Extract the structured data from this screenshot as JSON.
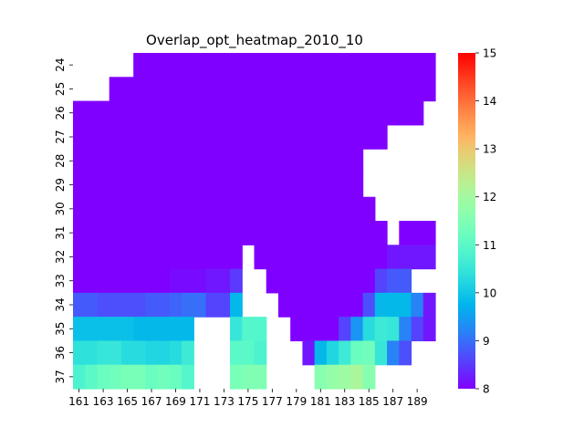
{
  "chart_data": {
    "type": "heatmap",
    "title": "Overlap_opt_heatmap_2010_10",
    "x_ticks": [
      "161",
      "163",
      "165",
      "167",
      "169",
      "171",
      "173",
      "175",
      "177",
      "179",
      "181",
      "183",
      "185",
      "187",
      "189"
    ],
    "y_ticks": [
      "24",
      "25",
      "26",
      "27",
      "28",
      "29",
      "30",
      "31",
      "32",
      "33",
      "34",
      "35",
      "36",
      "37"
    ],
    "x_start": 161,
    "x_end": 190,
    "y_start": 24,
    "y_end": 37,
    "colorbar": {
      "min": 8,
      "max": 15,
      "ticks": [
        "8",
        "9",
        "10",
        "11",
        "12",
        "13",
        "14",
        "15"
      ],
      "colormap": "rainbow"
    },
    "rows": [
      [
        null,
        null,
        null,
        null,
        null,
        8,
        8,
        8,
        8,
        8,
        8,
        8,
        8,
        8,
        8,
        8,
        8,
        8,
        8,
        8,
        8,
        8,
        8,
        8,
        8,
        8,
        8,
        8,
        8,
        8
      ],
      [
        null,
        null,
        null,
        8,
        8,
        8,
        8,
        8,
        8,
        8,
        8,
        8,
        8,
        8,
        8,
        8,
        8,
        8,
        8,
        8,
        8,
        8,
        8,
        8,
        8,
        8,
        8,
        8,
        8,
        8
      ],
      [
        8,
        8,
        8,
        8,
        8,
        8,
        8,
        8,
        8,
        8,
        8,
        8,
        8,
        8,
        8,
        8,
        8,
        8,
        8,
        8,
        8,
        8,
        8,
        8,
        8,
        8,
        8,
        8,
        8,
        null
      ],
      [
        8,
        8,
        8,
        8,
        8,
        8,
        8,
        8,
        8,
        8,
        8,
        8,
        8,
        8,
        8,
        8,
        8,
        8,
        8,
        8,
        8,
        8,
        8,
        8,
        8,
        8,
        null,
        null,
        null,
        null
      ],
      [
        8,
        8,
        8,
        8,
        8,
        8,
        8,
        8,
        8,
        8,
        8,
        8,
        8,
        8,
        8,
        8,
        8,
        8,
        8,
        8,
        8,
        8,
        8,
        8,
        null,
        null,
        null,
        null,
        null,
        null
      ],
      [
        8,
        8,
        8,
        8,
        8,
        8,
        8,
        8,
        8,
        8,
        8,
        8,
        8,
        8,
        8,
        8,
        8,
        8,
        8,
        8,
        8,
        8,
        8,
        8,
        null,
        null,
        null,
        null,
        null,
        null
      ],
      [
        8,
        8,
        8,
        8,
        8,
        8,
        8,
        8,
        8,
        8,
        8,
        8,
        8,
        8,
        8,
        8,
        8,
        8,
        8,
        8,
        8,
        8,
        8,
        8,
        8,
        null,
        null,
        null,
        null,
        null
      ],
      [
        8,
        8,
        8,
        8,
        8,
        8,
        8,
        8,
        8,
        8,
        8,
        8,
        8,
        8,
        8,
        8,
        8,
        8,
        8,
        8,
        8,
        8,
        8,
        8,
        8,
        8,
        null,
        8,
        8,
        8
      ],
      [
        8,
        8,
        8,
        8,
        8,
        8,
        8,
        8,
        8,
        8,
        8,
        8,
        8,
        8,
        null,
        8,
        8,
        8,
        8,
        8,
        8,
        8,
        8,
        8,
        8,
        8,
        8.2,
        8.2,
        8.2,
        8.2
      ],
      [
        8,
        8,
        8,
        8,
        8,
        8,
        8,
        8,
        8.1,
        8.1,
        8.1,
        8.2,
        8.2,
        8.5,
        null,
        null,
        8,
        8,
        8,
        8,
        8,
        8,
        8,
        8,
        8,
        8.6,
        8.8,
        8.8,
        null,
        null
      ],
      [
        8.8,
        8.8,
        8.7,
        8.7,
        8.7,
        8.7,
        8.8,
        8.8,
        8.9,
        9.0,
        9.0,
        8.6,
        8.6,
        9.8,
        null,
        null,
        null,
        8,
        8,
        8,
        8,
        8,
        8,
        8,
        8.7,
        9.8,
        9.8,
        9.8,
        9.2,
        8.2
      ],
      [
        9.9,
        9.9,
        9.9,
        9.9,
        9.9,
        9.8,
        9.8,
        9.8,
        9.8,
        9.8,
        null,
        null,
        null,
        10.5,
        10.9,
        10.9,
        null,
        null,
        8,
        8,
        8,
        8,
        8.6,
        9.4,
        10.3,
        10.6,
        10.5,
        9.2,
        8.6,
        8.2
      ],
      [
        10.4,
        10.4,
        10.5,
        10.5,
        10.3,
        10.3,
        10.2,
        10.2,
        10.3,
        10.6,
        null,
        null,
        null,
        11.0,
        11.0,
        10.8,
        null,
        null,
        null,
        8.2,
        9.8,
        10.2,
        10.6,
        11.2,
        11.3,
        10.5,
        9.2,
        8.7,
        null,
        null
      ],
      [
        10.8,
        11.0,
        11.2,
        11.3,
        11.4,
        11.4,
        11.2,
        11.3,
        11.2,
        10.9,
        null,
        null,
        null,
        11.4,
        11.5,
        11.5,
        null,
        null,
        null,
        null,
        11.6,
        11.8,
        11.9,
        12.1,
        11.6,
        null,
        null,
        null,
        null,
        null
      ]
    ]
  }
}
